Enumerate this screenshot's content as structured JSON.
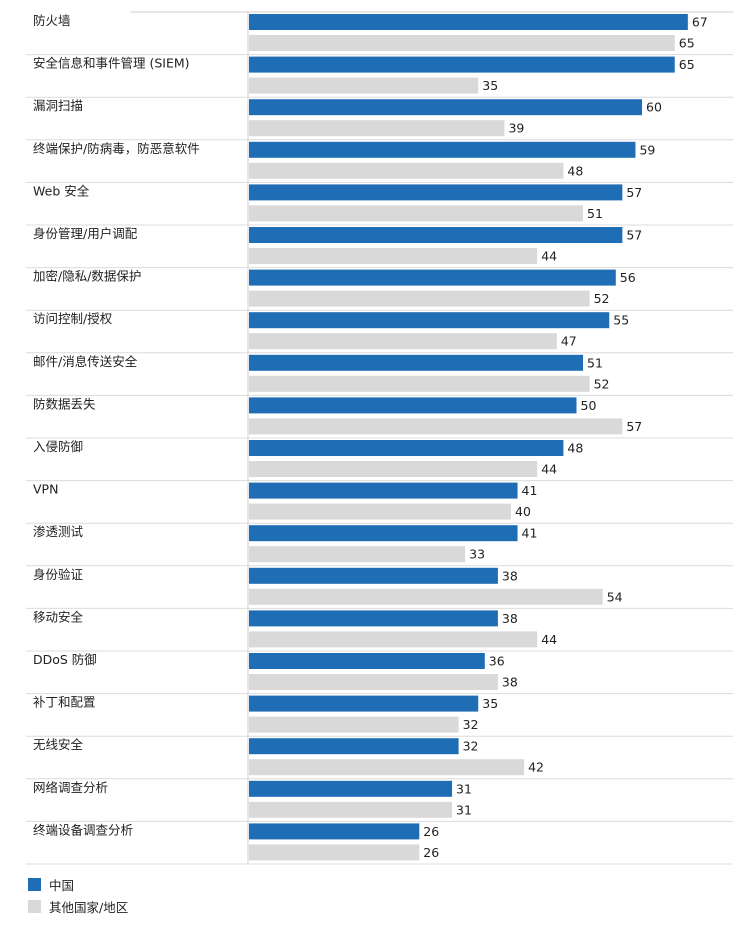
{
  "chart_data": {
    "type": "bar",
    "orientation": "horizontal",
    "categories": [
      "防火墙",
      "安全信息和事件管理 (SIEM)",
      "漏洞扫描",
      "终端保护/防病毒，防恶意软件",
      "Web 安全",
      "身份管理/用户调配",
      "加密/隐私/数据保护",
      "访问控制/授权",
      "邮件/消息传送安全",
      "防数据丢失",
      "入侵防御",
      "VPN",
      "渗透测试",
      "身份验证",
      "移动安全",
      "DDoS 防御",
      "补丁和配置",
      "无线安全",
      "网络调查分析",
      "终端设备调查分析"
    ],
    "series": [
      {
        "name": "中国",
        "color": "#1f6db5",
        "values": [
          67,
          65,
          60,
          59,
          57,
          57,
          56,
          55,
          51,
          50,
          48,
          41,
          41,
          38,
          38,
          36,
          35,
          32,
          31,
          26
        ]
      },
      {
        "name": "其他国家/地区",
        "color": "#d9d9d9",
        "values": [
          65,
          35,
          39,
          48,
          51,
          44,
          52,
          47,
          52,
          57,
          44,
          40,
          33,
          54,
          44,
          38,
          32,
          42,
          31,
          26
        ]
      }
    ],
    "legend_position": "bottom-left",
    "title": "",
    "xlabel": "",
    "ylabel": ""
  },
  "legend": {
    "items": [
      {
        "label": "中国",
        "color": "#1f6db5"
      },
      {
        "label": "其他国家/地区",
        "color": "#d9d9d9"
      }
    ]
  }
}
